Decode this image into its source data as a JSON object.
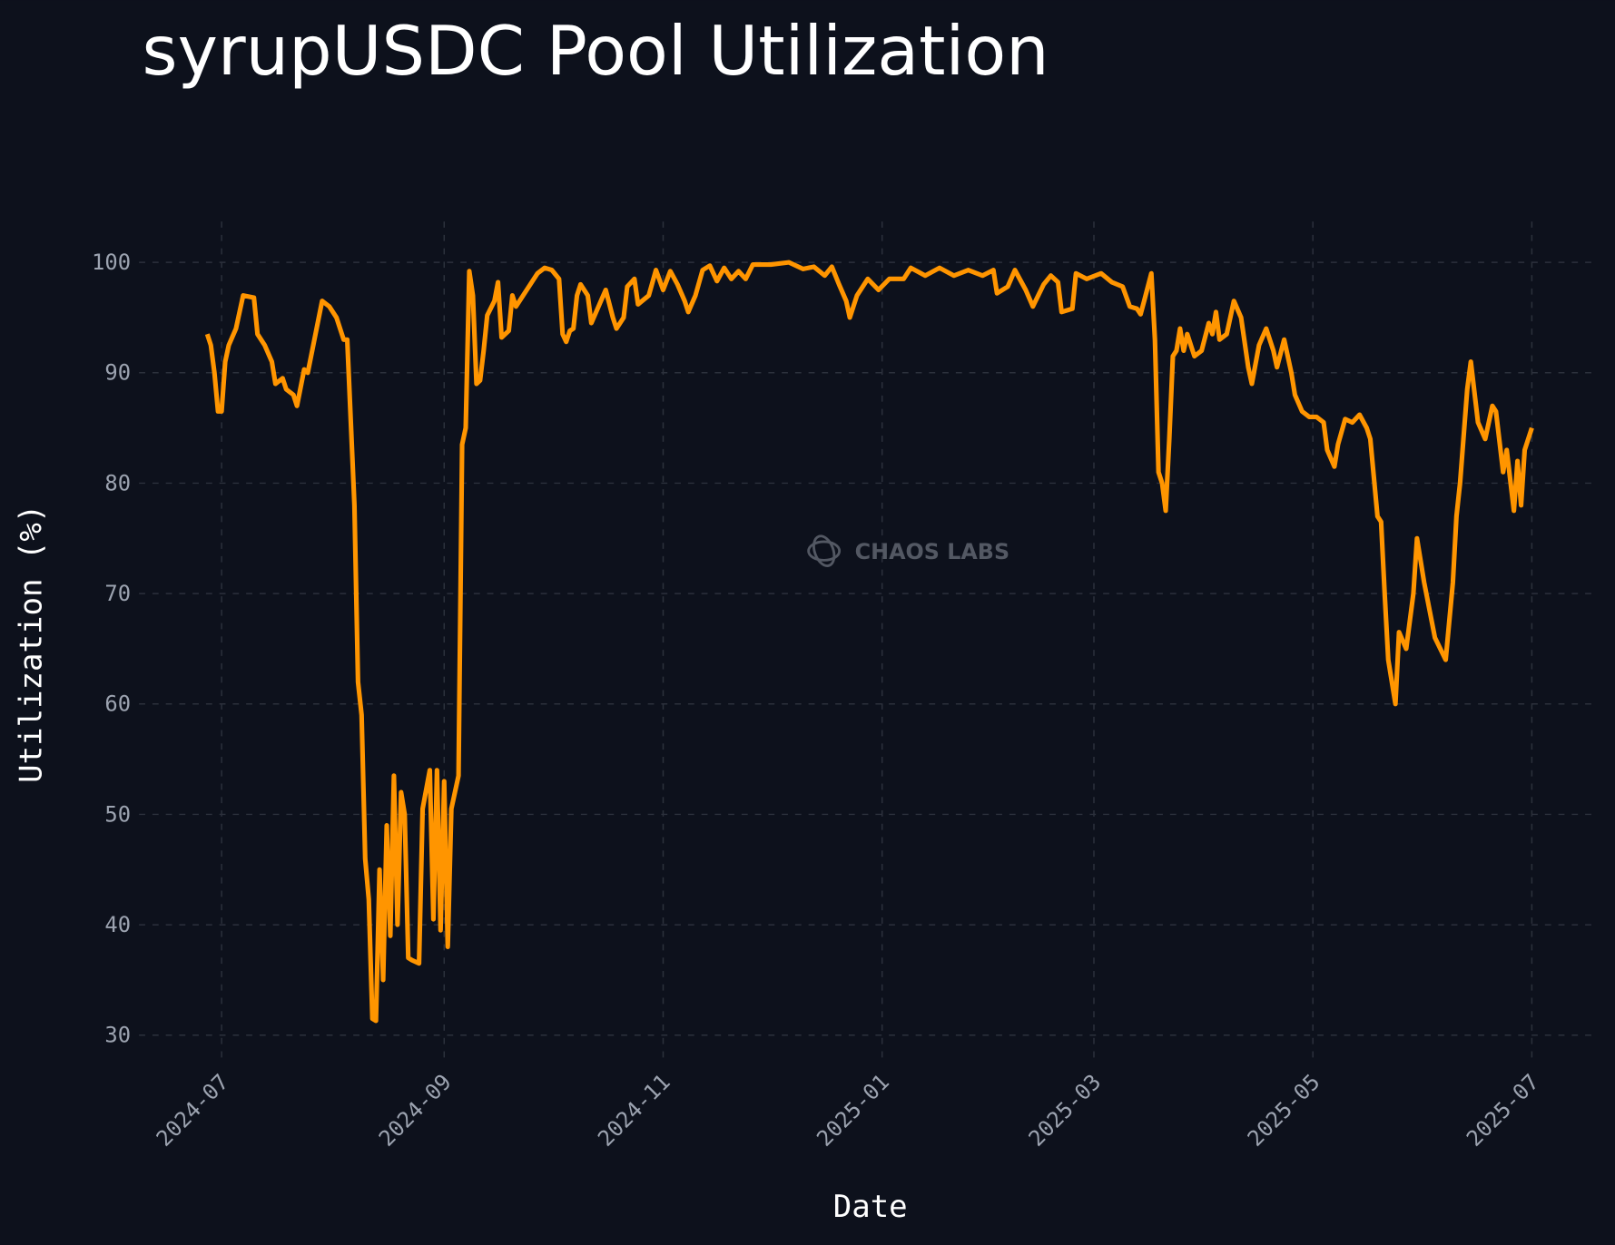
{
  "chart_data": {
    "type": "line",
    "title": "syrupUSDC Pool Utilization",
    "xlabel": "Date",
    "ylabel": "Utilization (%)",
    "watermark": "CHAOS LABS",
    "grid": true,
    "xlim": [
      "2024-06-08",
      "2025-07-19"
    ],
    "xticks": [
      {
        "value": "2024-07-01",
        "label": "2024-07"
      },
      {
        "value": "2024-09-01",
        "label": "2024-09"
      },
      {
        "value": "2024-11-01",
        "label": "2024-11"
      },
      {
        "value": "2025-01-01",
        "label": "2025-01"
      },
      {
        "value": "2025-03-01",
        "label": "2025-03"
      },
      {
        "value": "2025-05-01",
        "label": "2025-05"
      },
      {
        "value": "2025-07-01",
        "label": "2025-07"
      }
    ],
    "ylim": [
      27.7,
      103.7
    ],
    "yticks": [
      30,
      40,
      50,
      60,
      70,
      80,
      90,
      100
    ],
    "x": [
      "2024-06-27",
      "2024-06-28",
      "2024-06-29",
      "2024-06-30",
      "2024-07-01",
      "2024-07-02",
      "2024-07-03",
      "2024-07-05",
      "2024-07-07",
      "2024-07-10",
      "2024-07-11",
      "2024-07-13",
      "2024-07-15",
      "2024-07-16",
      "2024-07-18",
      "2024-07-19",
      "2024-07-21",
      "2024-07-22",
      "2024-07-24",
      "2024-07-25",
      "2024-07-29",
      "2024-07-31",
      "2024-08-02",
      "2024-08-04",
      "2024-08-05",
      "2024-08-07",
      "2024-08-08",
      "2024-08-09",
      "2024-08-10",
      "2024-08-11",
      "2024-08-12",
      "2024-08-13",
      "2024-08-14",
      "2024-08-15",
      "2024-08-16",
      "2024-08-17",
      "2024-08-18",
      "2024-08-19",
      "2024-08-20",
      "2024-08-21",
      "2024-08-22",
      "2024-08-23",
      "2024-08-25",
      "2024-08-26",
      "2024-08-28",
      "2024-08-29",
      "2024-08-30",
      "2024-08-31",
      "2024-09-01",
      "2024-09-02",
      "2024-09-03",
      "2024-09-05",
      "2024-09-06",
      "2024-09-07",
      "2024-09-08",
      "2024-09-09",
      "2024-09-10",
      "2024-09-11",
      "2024-09-12",
      "2024-09-13",
      "2024-09-15",
      "2024-09-16",
      "2024-09-17",
      "2024-09-19",
      "2024-09-20",
      "2024-09-21",
      "2024-09-24",
      "2024-09-27",
      "2024-09-29",
      "2024-10-01",
      "2024-10-03",
      "2024-10-04",
      "2024-10-05",
      "2024-10-06",
      "2024-10-07",
      "2024-10-08",
      "2024-10-09",
      "2024-10-11",
      "2024-10-12",
      "2024-10-14",
      "2024-10-16",
      "2024-10-18",
      "2024-10-19",
      "2024-10-21",
      "2024-10-22",
      "2024-10-24",
      "2024-10-25",
      "2024-10-28",
      "2024-10-30",
      "2024-11-01",
      "2024-11-03",
      "2024-11-05",
      "2024-11-07",
      "2024-11-08",
      "2024-11-10",
      "2024-11-12",
      "2024-11-14",
      "2024-11-16",
      "2024-11-18",
      "2024-11-20",
      "2024-11-22",
      "2024-11-24",
      "2024-11-26",
      "2024-12-01",
      "2024-12-06",
      "2024-12-10",
      "2024-12-13",
      "2024-12-16",
      "2024-12-18",
      "2024-12-20",
      "2024-12-22",
      "2024-12-23",
      "2024-12-25",
      "2024-12-28",
      "2024-12-31",
      "2025-01-03",
      "2025-01-07",
      "2025-01-09",
      "2025-01-13",
      "2025-01-17",
      "2025-01-21",
      "2025-01-25",
      "2025-01-29",
      "2025-02-01",
      "2025-02-02",
      "2025-02-05",
      "2025-02-07",
      "2025-02-10",
      "2025-02-12",
      "2025-02-15",
      "2025-02-17",
      "2025-02-19",
      "2025-02-20",
      "2025-02-23",
      "2025-02-24",
      "2025-02-27",
      "2025-03-03",
      "2025-03-06",
      "2025-03-09",
      "2025-03-11",
      "2025-03-13",
      "2025-03-14",
      "2025-03-15",
      "2025-03-17",
      "2025-03-18",
      "2025-03-19",
      "2025-03-20",
      "2025-03-21",
      "2025-03-22",
      "2025-03-23",
      "2025-03-24",
      "2025-03-25",
      "2025-03-26",
      "2025-03-27",
      "2025-03-29",
      "2025-03-31",
      "2025-04-02",
      "2025-04-03",
      "2025-04-04",
      "2025-04-05",
      "2025-04-07",
      "2025-04-09",
      "2025-04-11",
      "2025-04-13",
      "2025-04-14",
      "2025-04-16",
      "2025-04-18",
      "2025-04-20",
      "2025-04-21",
      "2025-04-23",
      "2025-04-25",
      "2025-04-26",
      "2025-04-28",
      "2025-04-30",
      "2025-05-02",
      "2025-05-04",
      "2025-05-05",
      "2025-05-07",
      "2025-05-08",
      "2025-05-10",
      "2025-05-12",
      "2025-05-14",
      "2025-05-16",
      "2025-05-17",
      "2025-05-19",
      "2025-05-20",
      "2025-05-21",
      "2025-05-22",
      "2025-05-24",
      "2025-05-25",
      "2025-05-27",
      "2025-05-29",
      "2025-05-30",
      "2025-06-01",
      "2025-06-04",
      "2025-06-07",
      "2025-06-09",
      "2025-06-10",
      "2025-06-11",
      "2025-06-13",
      "2025-06-14",
      "2025-06-16",
      "2025-06-18",
      "2025-06-20",
      "2025-06-21",
      "2025-06-23",
      "2025-06-24",
      "2025-06-26",
      "2025-06-27",
      "2025-06-28",
      "2025-06-29",
      "2025-07-01"
    ],
    "series": [
      {
        "name": "Utilization",
        "color": "#ff9500",
        "values": [
          93.5,
          92.5,
          90,
          86.5,
          86.5,
          91,
          92.5,
          94,
          97,
          96.8,
          93.5,
          92.5,
          91,
          89,
          89.5,
          88.5,
          88,
          87,
          90.3,
          90,
          96.5,
          96,
          95,
          93,
          93,
          78,
          62,
          59,
          46,
          42.3,
          31.5,
          31.3,
          45,
          35,
          49,
          39,
          53.5,
          40,
          52,
          50,
          37,
          36.8,
          36.5,
          50.5,
          54,
          40.5,
          54,
          39.5,
          53,
          38,
          50.5,
          53.5,
          83.5,
          85,
          99.2,
          97,
          89,
          89.3,
          92,
          95.2,
          96.5,
          98.2,
          93.2,
          93.8,
          97,
          96,
          97.5,
          99,
          99.5,
          99.3,
          98.5,
          93.5,
          92.8,
          93.8,
          94,
          97,
          98,
          97,
          94.5,
          96,
          97.5,
          95,
          94,
          95,
          97.8,
          98.5,
          96.2,
          97,
          99.3,
          97.5,
          99.2,
          98,
          96.5,
          95.5,
          97,
          99.3,
          99.7,
          98.3,
          99.5,
          98.5,
          99.2,
          98.5,
          99.8,
          99.8,
          100,
          99.4,
          99.6,
          98.8,
          99.6,
          98,
          96.5,
          95,
          97,
          98.5,
          97.5,
          98.5,
          98.5,
          99.5,
          98.8,
          99.5,
          98.8,
          99.3,
          98.8,
          99.3,
          97.2,
          97.8,
          99.3,
          97.5,
          96,
          98,
          98.8,
          98.2,
          95.5,
          95.8,
          99,
          98.5,
          99,
          98.2,
          97.8,
          96,
          95.8,
          95.3,
          96.5,
          99,
          93,
          81,
          80,
          77.5,
          84,
          91.5,
          92,
          94,
          92,
          93.5,
          91.5,
          92,
          94.5,
          93.5,
          95.5,
          93,
          93.5,
          96.5,
          95,
          90.5,
          89,
          92.5,
          94,
          92,
          90.5,
          93,
          90,
          88,
          86.5,
          86,
          86,
          85.5,
          83,
          81.5,
          83.5,
          85.8,
          85.5,
          86.2,
          85,
          84,
          77,
          76.5,
          70,
          64,
          60,
          66.5,
          65,
          70,
          75,
          71,
          66,
          64,
          71,
          77,
          80,
          88.5,
          91,
          85.5,
          84,
          87,
          86.5,
          81,
          83,
          77.5,
          82,
          78,
          83,
          85
        ]
      }
    ]
  }
}
